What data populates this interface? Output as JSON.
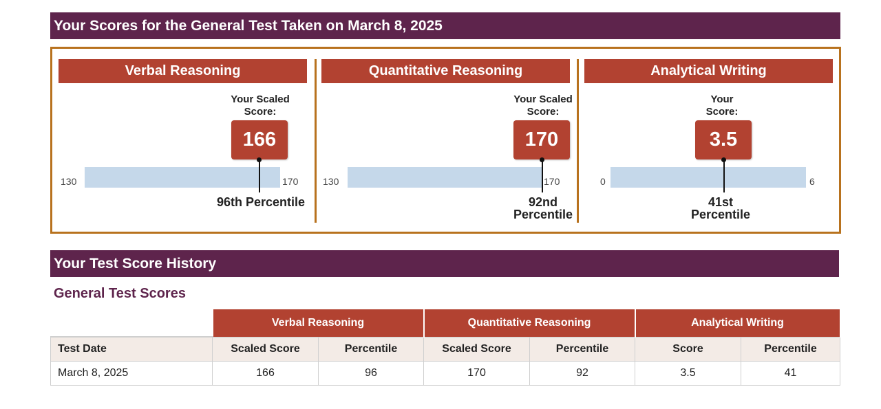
{
  "header": {
    "title": "Your Scores for the General Test Taken on March 8, 2025"
  },
  "sections": [
    {
      "title": "Verbal Reasoning",
      "your_label": "Your Scaled Score:",
      "score": "166",
      "score_value": 166,
      "min": "130",
      "max": "170",
      "min_value": 130,
      "max_value": 170,
      "percentile_label": "96th Percentile"
    },
    {
      "title": "Quantitative Reasoning",
      "your_label": "Your Scaled Score:",
      "score": "170",
      "score_value": 170,
      "min": "130",
      "max": "170",
      "min_value": 130,
      "max_value": 170,
      "percentile_label": "92nd Percentile"
    },
    {
      "title": "Analytical Writing",
      "your_label": "Your Score:",
      "score": "3.5",
      "score_value": 3.5,
      "min": "0",
      "max": "6",
      "min_value": 0,
      "max_value": 6,
      "percentile_label": "41st Percentile"
    }
  ],
  "history": {
    "title": "Your Test Score History",
    "subtitle": "General Test Scores",
    "groups": [
      "Verbal Reasoning",
      "Quantitative Reasoning",
      "Analytical Writing"
    ],
    "columns": [
      "Test Date",
      "Scaled Score",
      "Percentile",
      "Scaled Score",
      "Percentile",
      "Score",
      "Percentile"
    ],
    "rows": [
      [
        "March 8, 2025",
        "166",
        "96",
        "170",
        "92",
        "3.5",
        "41"
      ]
    ]
  },
  "colors": {
    "header_bg": "#5e244c",
    "section_bg": "#b24231",
    "border": "#b8721e",
    "scale_bar": "#c5d8ea"
  }
}
